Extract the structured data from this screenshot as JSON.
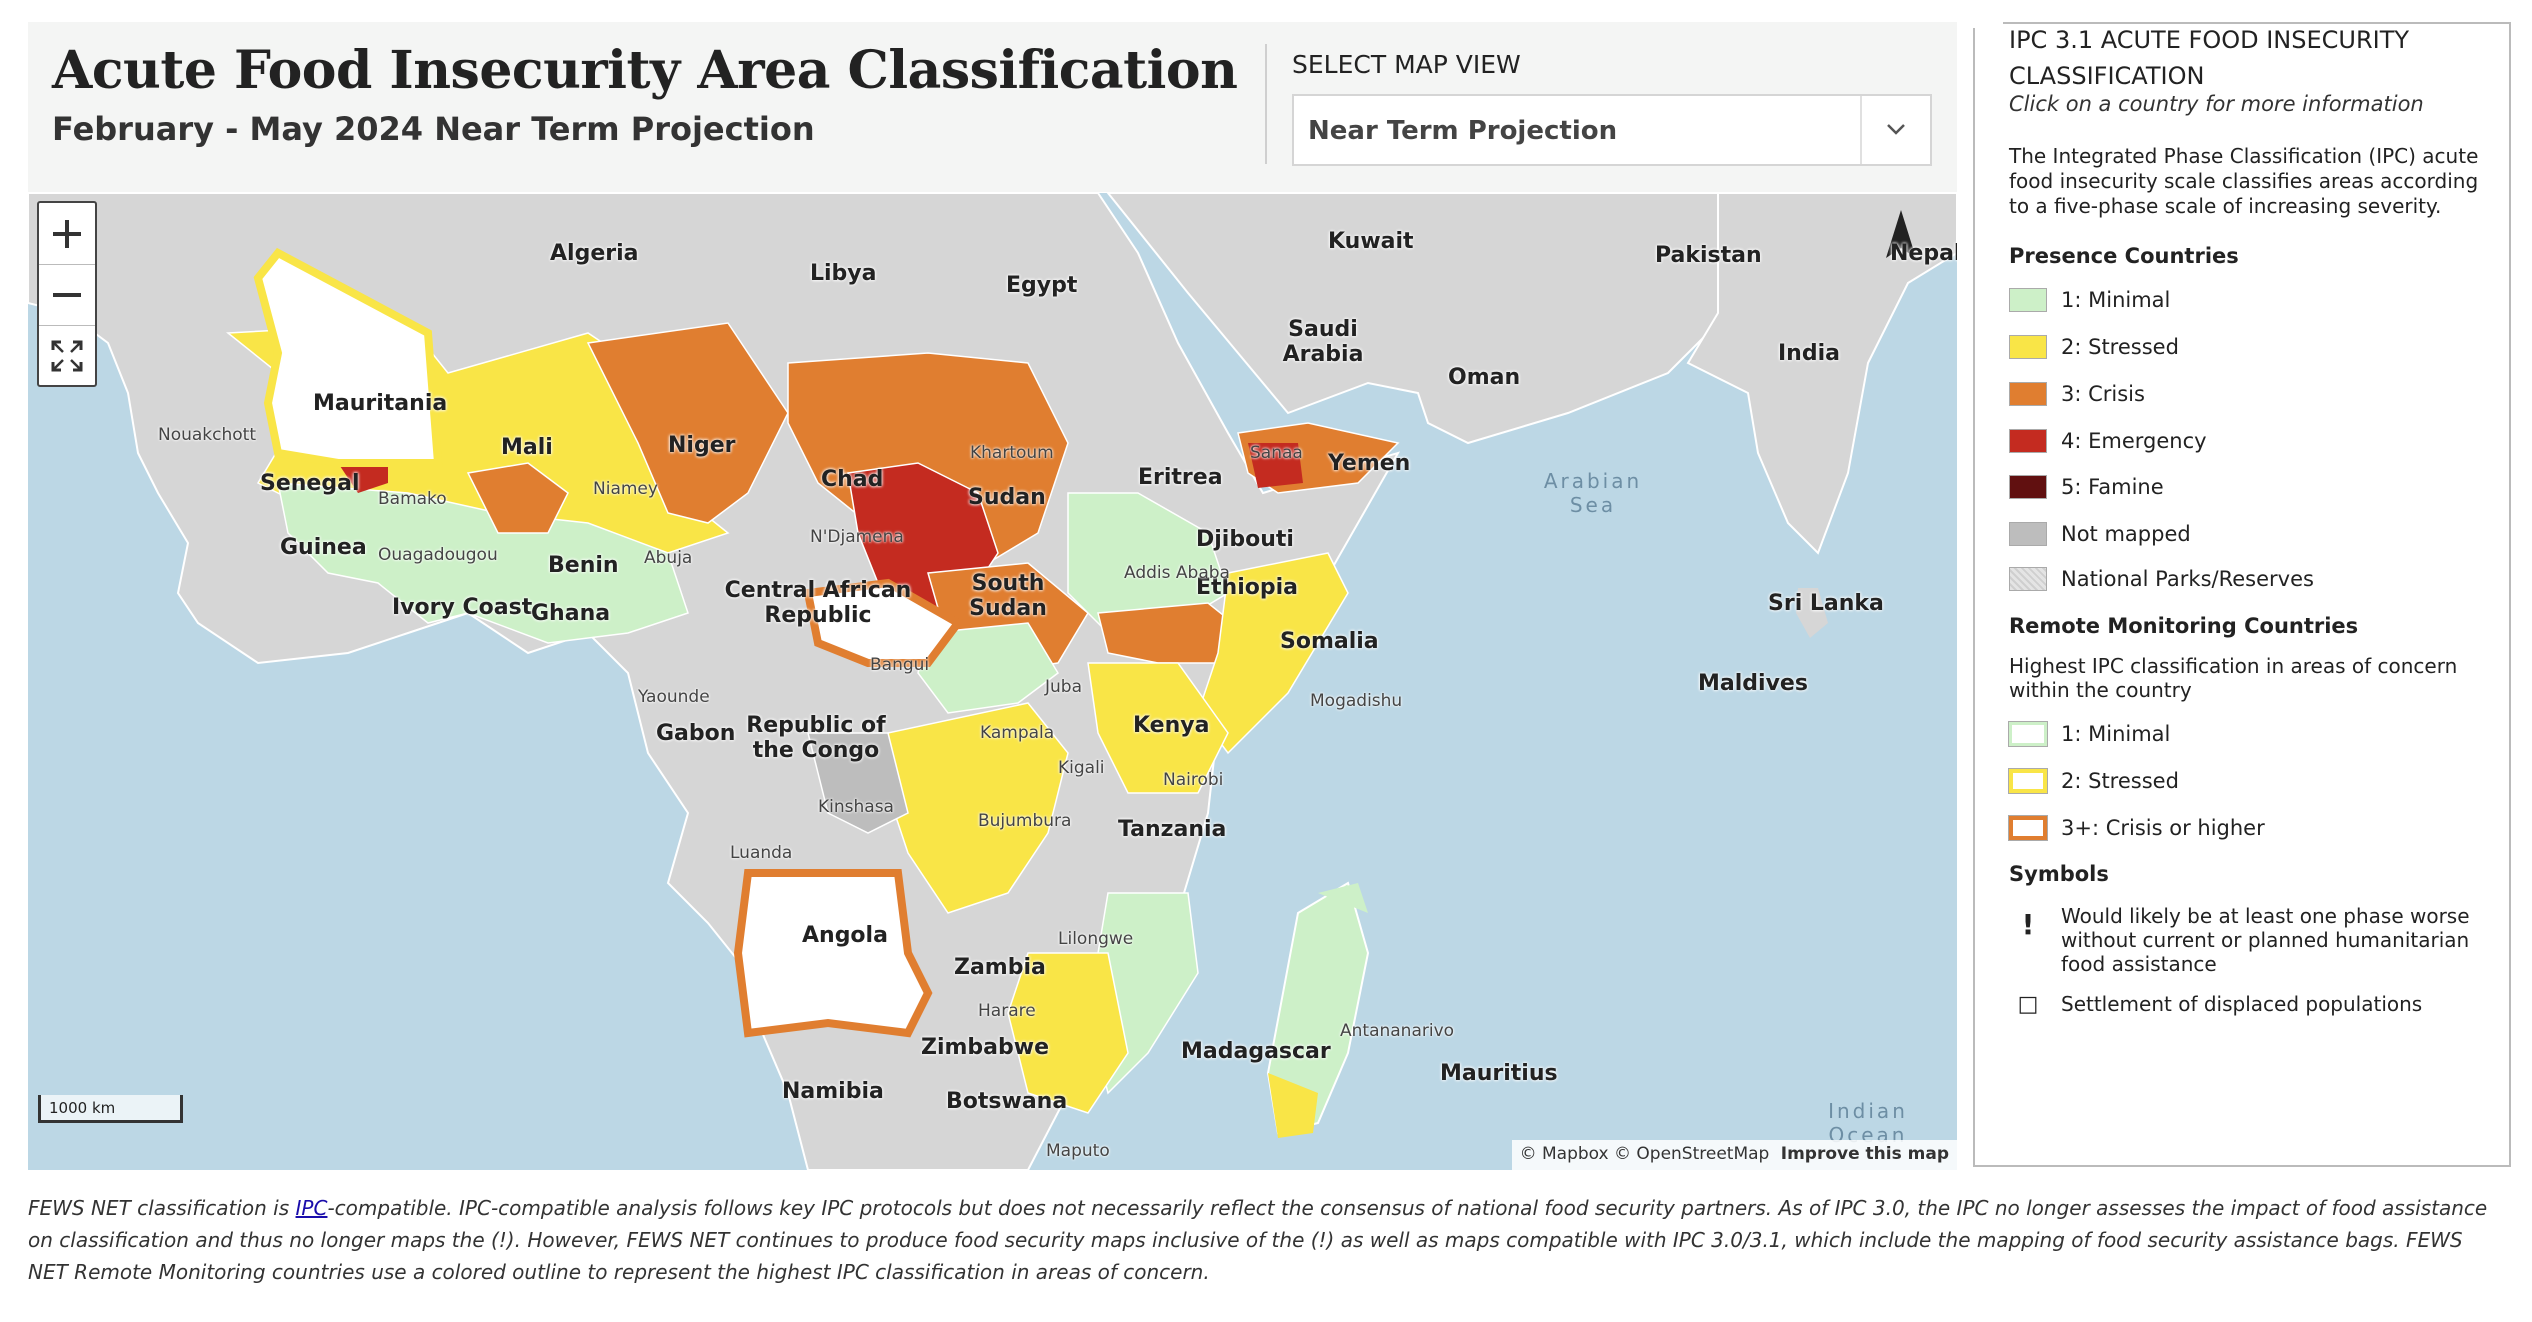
{
  "header": {
    "title": "Acute Food Insecurity Area Classification",
    "subtitle": "February - May 2024 Near Term Projection",
    "view_label": "SELECT MAP VIEW",
    "view_selected": "Near Term Projection"
  },
  "map": {
    "zoom_in_icon": "plus-icon",
    "zoom_out_icon": "minus-icon",
    "fullscreen_icon": "expand-icon",
    "north_arrow_icon": "north-arrow-icon",
    "scale_text": "1000 km",
    "attribution": {
      "mapbox": "© Mapbox",
      "osm": "© OpenStreetMap",
      "improve": "Improve this map"
    },
    "country_labels": [
      "Algeria",
      "Libya",
      "Egypt",
      "Kuwait",
      "Pakistan",
      "Nepal",
      "India",
      "Saudi Arabia",
      "Oman",
      "Mauritania",
      "Mali",
      "Niger",
      "Chad",
      "Sudan",
      "Eritrea",
      "Yemen",
      "Djibouti",
      "Ethiopia",
      "Somalia",
      "Senegal",
      "Guinea",
      "Benin",
      "Ivory Coast",
      "Ghana",
      "Central African Republic",
      "South Sudan",
      "Kenya",
      "Gabon",
      "Republic of the Congo",
      "Tanzania",
      "Angola",
      "Zambia",
      "Zimbabwe",
      "Namibia",
      "Botswana",
      "Madagascar",
      "Mauritius",
      "Sri Lanka",
      "Maldives"
    ],
    "city_labels": [
      "Nouakchott",
      "Bamako",
      "Niamey",
      "Ouagadougou",
      "N'Djamena",
      "Abuja",
      "Khartoum",
      "Sanaa",
      "Addis Ababa",
      "Bangui",
      "Yaounde",
      "Juba",
      "Mogadishu",
      "Kampala",
      "Kigali",
      "Nairobi",
      "Kinshasa",
      "Bujumbura",
      "Luanda",
      "Lilongwe",
      "Harare",
      "Antananarivo",
      "Maputo"
    ],
    "water_labels": [
      "Arabian Sea",
      "Indian Ocean"
    ]
  },
  "legend": {
    "title": "IPC 3.1 ACUTE FOOD INSECURITY CLASSIFICATION",
    "hint": "Click on a country for more information",
    "description": "The Integrated Phase Classification (IPC) acute food insecurity scale classifies areas according to a five-phase scale of increasing severity.",
    "presence_heading": "Presence Countries",
    "presence_items": [
      {
        "label": "1: Minimal",
        "color": "#cdf0c8"
      },
      {
        "label": "2: Stressed",
        "color": "#f9e547"
      },
      {
        "label": "3: Crisis",
        "color": "#e07e30"
      },
      {
        "label": "4: Emergency",
        "color": "#c42b20"
      },
      {
        "label": "5: Famine",
        "color": "#611010"
      },
      {
        "label": "Not mapped",
        "color": "#bdbdbd"
      },
      {
        "label": "National Parks/Reserves",
        "color": "#e4e4e4"
      }
    ],
    "remote_heading": "Remote Monitoring Countries",
    "remote_sub": "Highest IPC classification in areas of concern within the country",
    "remote_items": [
      {
        "label": "1: Minimal",
        "color": "#cdf0c8"
      },
      {
        "label": "2: Stressed",
        "color": "#f9e547"
      },
      {
        "label": "3+: Crisis or higher",
        "color": "#e07e30"
      }
    ],
    "symbols_heading": "Symbols",
    "symbols": [
      {
        "glyph": "!",
        "label": "Would likely be at least one phase worse without current or planned humanitarian food assistance"
      },
      {
        "glyph": "□",
        "label": "Settlement of displaced populations"
      }
    ]
  },
  "footnote": {
    "pre": "FEWS NET classification is ",
    "link": "IPC",
    "post": "-compatible. IPC-compatible analysis follows key IPC protocols but does not necessarily reflect the consensus of national food security partners. As of IPC 3.0, the IPC no longer assesses the impact of food assistance on classification and thus no longer maps the (!). However, FEWS NET continues to produce food security maps inclusive of the (!) as well as maps compatible with IPC 3.0/3.1, which include the mapping of food security assistance bags. FEWS NET Remote Monitoring countries use a colored outline to represent the highest IPC classification in areas of concern."
  }
}
